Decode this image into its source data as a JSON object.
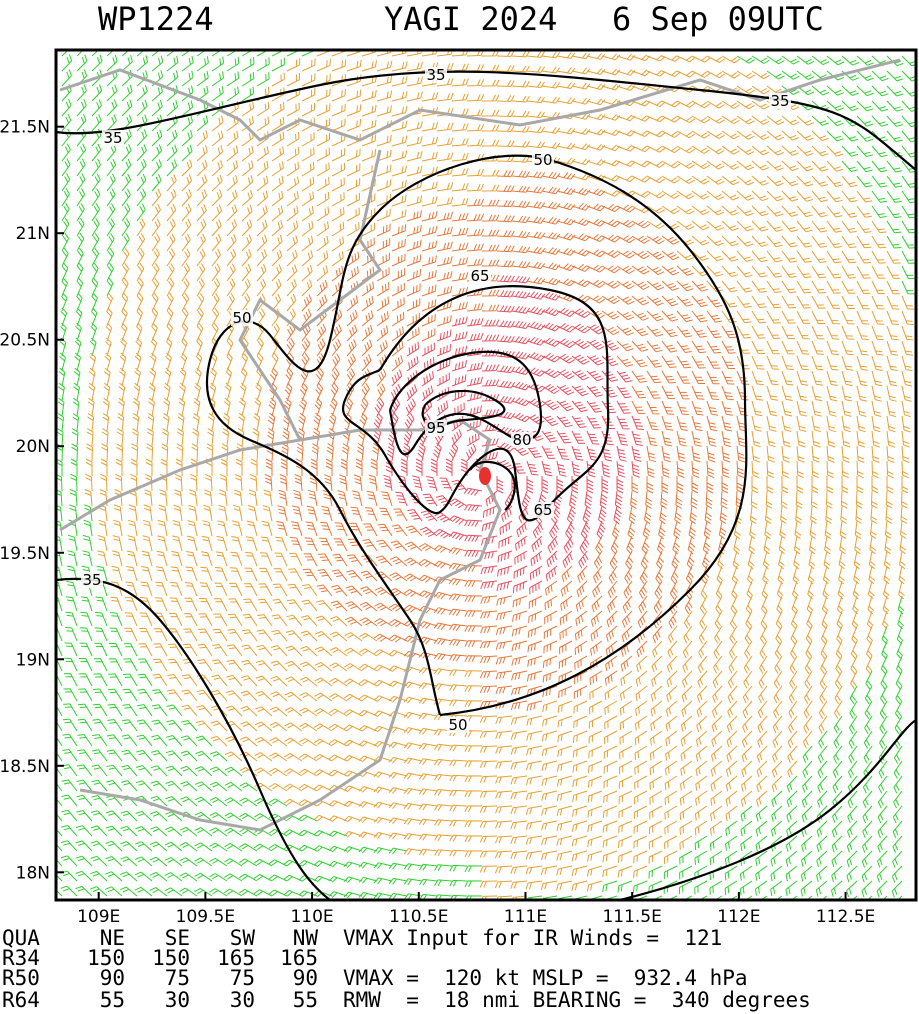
{
  "header": {
    "id": "WP1224",
    "storm": "YAGI 2024",
    "time": "6 Sep 09UTC"
  },
  "map": {
    "xlim": [
      108.8,
      112.83
    ],
    "ylim": [
      17.87,
      21.86
    ],
    "xticks": [
      {
        "value": 109,
        "label": "109E"
      },
      {
        "value": 109.5,
        "label": "109.5E"
      },
      {
        "value": 110,
        "label": "110E"
      },
      {
        "value": 110.5,
        "label": "110.5E"
      },
      {
        "value": 111,
        "label": "111E"
      },
      {
        "value": 111.5,
        "label": "111.5E"
      },
      {
        "value": 112,
        "label": "112E"
      },
      {
        "value": 112.5,
        "label": "112.5E"
      }
    ],
    "yticks": [
      {
        "value": 21.5,
        "label": "21.5N"
      },
      {
        "value": 21,
        "label": "21N"
      },
      {
        "value": 20.5,
        "label": "20.5N"
      },
      {
        "value": 20,
        "label": "20N"
      },
      {
        "value": 19.5,
        "label": "19.5N"
      },
      {
        "value": 19,
        "label": "19N"
      },
      {
        "value": 18.5,
        "label": "18.5N"
      },
      {
        "value": 18,
        "label": "18N"
      }
    ],
    "contours": [
      {
        "value": 35
      },
      {
        "value": 50
      },
      {
        "value": 65
      },
      {
        "value": 80
      },
      {
        "value": 95
      }
    ]
  },
  "table": {
    "header": [
      "QUA",
      "NE",
      "SE",
      "SW",
      "NW"
    ],
    "rows": [
      [
        "R34",
        "150",
        "150",
        "165",
        "165"
      ],
      [
        "R50",
        "90",
        "75",
        "75",
        "90"
      ],
      [
        "R64",
        "55",
        "30",
        "30",
        "55"
      ]
    ]
  },
  "info": [
    "VMAX Input for IR Winds =  121",
    "VMAX =  120 kt MSLP =  932.4 hPa",
    "RMW  =  18 nmi BEARING =  340 degrees"
  ]
}
